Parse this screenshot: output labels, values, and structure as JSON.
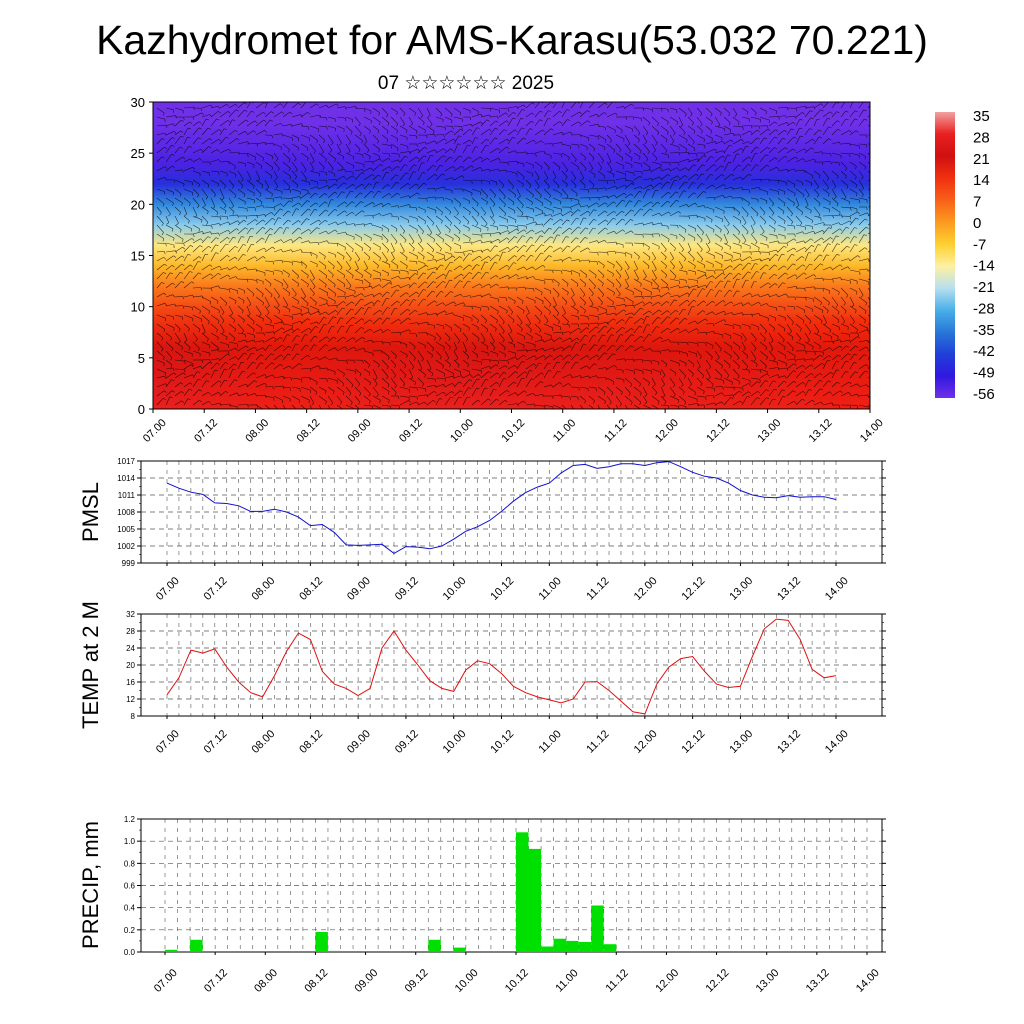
{
  "title": "Kazhydromet for AMS-Karasu(53.032 70.221)",
  "subtitle": "07 ☆☆☆☆☆☆ 2025",
  "time_labels": [
    "07.00",
    "07.12",
    "08.00",
    "08.12",
    "09.00",
    "09.12",
    "10.00",
    "10.12",
    "11.00",
    "11.12",
    "12.00",
    "12.12",
    "13.00",
    "13.12",
    "14.00"
  ],
  "colorbar": {
    "labels": [
      "35",
      "28",
      "21",
      "14",
      "7",
      "0",
      "-7",
      "-14",
      "-21",
      "-28",
      "-35",
      "-42",
      "-49",
      "-56"
    ],
    "colors": [
      "#f2a0a0",
      "#e82020",
      "#d01010",
      "#f03010",
      "#f86018",
      "#fc9a20",
      "#fdd030",
      "#fff0a0",
      "#b8e0f0",
      "#4ab0e8",
      "#2878d8",
      "#2040d8",
      "#3018e0",
      "#7030e8"
    ]
  },
  "chart_data": [
    {
      "type": "heatmap",
      "description_source": "cross-section of temperature with wind barbs",
      "xlabel": "",
      "ylabel": "",
      "ylim": [
        0,
        30
      ],
      "y_ticks": [
        0,
        5,
        10,
        15,
        20,
        25,
        30
      ],
      "x_ticks": [
        "07.00",
        "07.12",
        "08.00",
        "08.12",
        "09.00",
        "09.12",
        "10.00",
        "10.12",
        "11.00",
        "11.12",
        "12.00",
        "12.12",
        "13.00",
        "13.12",
        "14.00"
      ],
      "levels": [
        {
          "y": 0,
          "value": 28
        },
        {
          "y": 2,
          "value": 26
        },
        {
          "y": 4,
          "value": 24
        },
        {
          "y": 6,
          "value": 20
        },
        {
          "y": 8,
          "value": 15
        },
        {
          "y": 10,
          "value": 10
        },
        {
          "y": 12,
          "value": 4
        },
        {
          "y": 14,
          "value": -4
        },
        {
          "y": 16,
          "value": -12
        },
        {
          "y": 18,
          "value": -24
        },
        {
          "y": 20,
          "value": -33
        },
        {
          "y": 22,
          "value": -45
        },
        {
          "y": 24,
          "value": -52
        },
        {
          "y": 26,
          "value": -54
        },
        {
          "y": 28,
          "value": -56
        },
        {
          "y": 30,
          "value": -56
        }
      ]
    },
    {
      "type": "line",
      "ylabel": "PMSL",
      "ylim": [
        999,
        1017
      ],
      "y_ticks": [
        999,
        1002,
        1005,
        1008,
        1011,
        1014,
        1017
      ],
      "color": "#1010d0",
      "x": [
        0,
        3,
        6,
        9,
        12,
        15,
        18,
        21,
        24,
        27,
        30,
        33,
        36,
        39,
        42,
        45,
        48,
        51,
        54,
        57,
        60,
        63,
        66,
        69,
        72,
        75,
        78,
        81,
        84,
        87,
        90,
        93,
        96,
        99,
        102,
        105,
        108,
        111,
        114,
        117,
        120,
        123,
        126,
        129,
        132,
        135,
        138,
        141,
        144,
        147,
        150,
        153,
        156,
        159,
        162,
        165,
        168
      ],
      "y": [
        1013.1,
        1012.2,
        1011.5,
        1011.1,
        1009.6,
        1009.5,
        1009.1,
        1008.1,
        1008.1,
        1008.5,
        1008.0,
        1007.1,
        1005.6,
        1005.8,
        1004.4,
        1002.2,
        1002.1,
        1002.2,
        1002.3,
        1000.7,
        1001.9,
        1001.8,
        1001.5,
        1002.0,
        1003.2,
        1004.6,
        1005.4,
        1006.5,
        1008.1,
        1009.9,
        1011.4,
        1012.4,
        1013.1,
        1014.9,
        1016.2,
        1016.4,
        1015.7,
        1016.0,
        1016.5,
        1016.5,
        1016.2,
        1016.7,
        1016.9,
        1016.0,
        1015.0,
        1014.3,
        1014.0,
        1013.1,
        1011.8,
        1011.0,
        1010.6,
        1010.5,
        1010.9,
        1010.6,
        1010.7,
        1010.7,
        1010.2
      ]
    },
    {
      "type": "line",
      "ylabel": "TEMP at 2 M",
      "ylim": [
        8,
        32
      ],
      "y_ticks": [
        8,
        12,
        16,
        20,
        24,
        28,
        32
      ],
      "color": "#e01010",
      "x": [
        0,
        3,
        6,
        9,
        12,
        15,
        18,
        21,
        24,
        27,
        30,
        33,
        36,
        39,
        42,
        45,
        48,
        51,
        54,
        57,
        60,
        63,
        66,
        69,
        72,
        75,
        78,
        81,
        84,
        87,
        90,
        93,
        96,
        99,
        102,
        105,
        108,
        111,
        114,
        117,
        120,
        123,
        126,
        129,
        132,
        135,
        138,
        141,
        144,
        147,
        150,
        153,
        156,
        159,
        162,
        165,
        168
      ],
      "y": [
        13.0,
        17.0,
        23.5,
        22.8,
        23.8,
        19.5,
        16.0,
        13.5,
        12.5,
        17.5,
        23.2,
        27.5,
        26.0,
        18.5,
        15.5,
        14.5,
        12.8,
        14.5,
        24.0,
        28.0,
        23.5,
        20.0,
        16.3,
        14.5,
        13.8,
        18.8,
        21.0,
        20.3,
        18.0,
        15.0,
        13.5,
        12.5,
        11.8,
        11.1,
        12.0,
        16.0,
        16.1,
        14.0,
        11.5,
        9.0,
        8.5,
        15.5,
        19.5,
        21.5,
        22.0,
        18.5,
        15.5,
        14.7,
        15.0,
        22.0,
        28.5,
        30.8,
        30.5,
        26.0,
        19.0,
        17.0,
        17.5
      ]
    },
    {
      "type": "bar",
      "ylabel": "PRECIP, mm",
      "ylim": [
        0,
        1.2
      ],
      "y_ticks": [
        0.0,
        0.2,
        0.4,
        0.6,
        0.8,
        1.0,
        1.2
      ],
      "color": "#00e000",
      "x_hours": [
        0,
        3,
        6,
        9,
        12,
        15,
        18,
        21,
        24,
        27,
        30,
        33,
        36,
        39,
        42,
        45,
        48,
        51,
        54,
        57,
        60,
        63,
        66,
        69,
        72,
        75,
        78,
        81,
        84,
        87,
        90,
        93,
        96,
        99,
        102,
        105,
        108,
        111,
        114,
        117,
        120,
        123,
        126,
        129,
        132,
        135,
        138,
        141,
        144,
        147,
        150,
        153,
        156,
        159,
        162,
        165
      ],
      "values": [
        0.02,
        0.0,
        0.11,
        0.0,
        0.0,
        0.0,
        0.0,
        0.0,
        0.0,
        0.0,
        0.0,
        0.0,
        0.18,
        0.01,
        0.0,
        0.0,
        0.0,
        0.0,
        0.0,
        0.0,
        0.0,
        0.11,
        0.0,
        0.04,
        0.0,
        0.0,
        0.0,
        0.0,
        1.08,
        0.93,
        0.05,
        0.12,
        0.1,
        0.09,
        0.42,
        0.07,
        0.0,
        0.0,
        0.0,
        0.0,
        0.0,
        0.0,
        0.0,
        0.0,
        0.0,
        0.0,
        0.0,
        0.0,
        0.0,
        0.0,
        0.0,
        0.0,
        0.0,
        0.0,
        0.0,
        0.0
      ]
    }
  ]
}
